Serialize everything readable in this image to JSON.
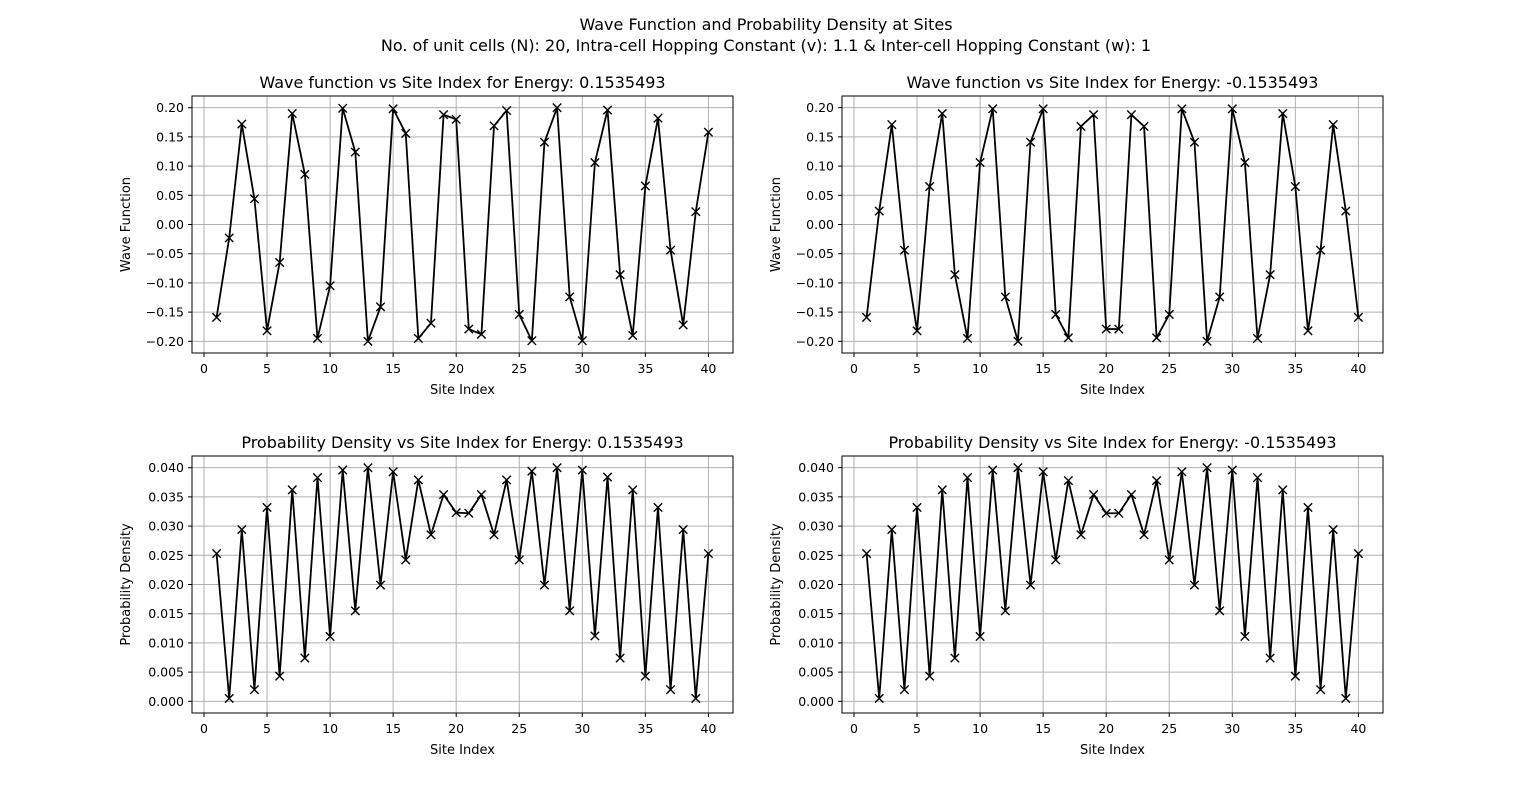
{
  "figure": {
    "suptitle_line1": "Wave Function and Probability Density at Sites",
    "suptitle_line2": "No. of unit cells (N): 20, Intra-cell Hopping Constant (v): 1.1 & Inter-cell Hopping Constant (w): 1"
  },
  "chart_data": [
    {
      "type": "line",
      "title": "Wave function vs Site Index for Energy: 0.1535493",
      "xlabel": "Site Index",
      "ylabel": "Wave Function",
      "xlim": [
        -0.95,
        41.95
      ],
      "ylim": [
        -0.22,
        0.22
      ],
      "xticks": [
        0,
        5,
        10,
        15,
        20,
        25,
        30,
        35,
        40
      ],
      "yticks": [
        -0.2,
        -0.15,
        -0.1,
        -0.05,
        0.0,
        0.05,
        0.1,
        0.15,
        0.2
      ],
      "ytick_labels": [
        "−0.20",
        "−0.15",
        "−0.10",
        "−0.05",
        "0.00",
        "0.05",
        "0.10",
        "0.15",
        "0.20"
      ],
      "grid": true,
      "marker": "x",
      "color": "#000000",
      "x": [
        1,
        2,
        3,
        4,
        5,
        6,
        7,
        8,
        9,
        10,
        11,
        12,
        13,
        14,
        15,
        16,
        17,
        18,
        19,
        20,
        21,
        22,
        23,
        24,
        25,
        26,
        27,
        28,
        29,
        30,
        31,
        32,
        33,
        34,
        35,
        36,
        37,
        38,
        39,
        40
      ],
      "y": [
        -0.159,
        -0.023,
        0.172,
        0.044,
        -0.182,
        -0.065,
        0.19,
        0.086,
        -0.195,
        -0.105,
        0.199,
        0.124,
        -0.2,
        -0.141,
        0.198,
        0.156,
        -0.195,
        -0.169,
        0.188,
        0.18,
        -0.179,
        -0.188,
        0.169,
        0.195,
        -0.154,
        -0.199,
        0.141,
        0.2,
        -0.124,
        -0.199,
        0.106,
        0.196,
        -0.086,
        -0.19,
        0.066,
        0.182,
        -0.044,
        -0.172,
        0.022,
        0.158
      ]
    },
    {
      "type": "line",
      "title": "Wave function vs Site Index for Energy: -0.1535493",
      "xlabel": "Site Index",
      "ylabel": "Wave Function",
      "xlim": [
        -0.95,
        41.95
      ],
      "ylim": [
        -0.22,
        0.22
      ],
      "xticks": [
        0,
        5,
        10,
        15,
        20,
        25,
        30,
        35,
        40
      ],
      "yticks": [
        -0.2,
        -0.15,
        -0.1,
        -0.05,
        0.0,
        0.05,
        0.1,
        0.15,
        0.2
      ],
      "ytick_labels": [
        "−0.20",
        "−0.15",
        "−0.10",
        "−0.05",
        "0.00",
        "0.05",
        "0.10",
        "0.15",
        "0.20"
      ],
      "grid": true,
      "marker": "x",
      "color": "#000000",
      "x": [
        1,
        2,
        3,
        4,
        5,
        6,
        7,
        8,
        9,
        10,
        11,
        12,
        13,
        14,
        15,
        16,
        17,
        18,
        19,
        20,
        21,
        22,
        23,
        24,
        25,
        26,
        27,
        28,
        29,
        30,
        31,
        32,
        33,
        34,
        35,
        36,
        37,
        38,
        39,
        40
      ],
      "y": [
        -0.159,
        0.023,
        0.171,
        -0.044,
        -0.182,
        0.065,
        0.19,
        -0.086,
        -0.195,
        0.106,
        0.198,
        -0.124,
        -0.2,
        0.141,
        0.198,
        -0.154,
        -0.194,
        0.168,
        0.188,
        -0.179,
        -0.179,
        0.188,
        0.168,
        -0.194,
        -0.154,
        0.198,
        0.141,
        -0.2,
        -0.124,
        0.198,
        0.106,
        -0.195,
        -0.086,
        0.19,
        0.065,
        -0.182,
        -0.044,
        0.171,
        0.023,
        -0.159
      ]
    },
    {
      "type": "line",
      "title": "Probability Density vs Site Index for Energy: 0.1535493",
      "xlabel": "Site Index",
      "ylabel": "Probability Density",
      "xlim": [
        -0.95,
        41.95
      ],
      "ylim": [
        -0.002,
        0.042
      ],
      "xticks": [
        0,
        5,
        10,
        15,
        20,
        25,
        30,
        35,
        40
      ],
      "yticks": [
        0.0,
        0.005,
        0.01,
        0.015,
        0.02,
        0.025,
        0.03,
        0.035,
        0.04
      ],
      "ytick_labels": [
        "0.000",
        "0.005",
        "0.010",
        "0.015",
        "0.020",
        "0.025",
        "0.030",
        "0.035",
        "0.040"
      ],
      "grid": true,
      "marker": "x",
      "color": "#000000",
      "x": [
        1,
        2,
        3,
        4,
        5,
        6,
        7,
        8,
        9,
        10,
        11,
        12,
        13,
        14,
        15,
        16,
        17,
        18,
        19,
        20,
        21,
        22,
        23,
        24,
        25,
        26,
        27,
        28,
        29,
        30,
        31,
        32,
        33,
        34,
        35,
        36,
        37,
        38,
        39,
        40
      ],
      "y": [
        0.0253,
        0.0005,
        0.0294,
        0.002,
        0.0332,
        0.0043,
        0.0362,
        0.0074,
        0.0383,
        0.0111,
        0.0396,
        0.0155,
        0.04,
        0.0199,
        0.0393,
        0.0242,
        0.0379,
        0.0285,
        0.0354,
        0.0323,
        0.0322,
        0.0354,
        0.0285,
        0.0379,
        0.0242,
        0.0394,
        0.0199,
        0.04,
        0.0155,
        0.0396,
        0.0112,
        0.0384,
        0.0074,
        0.0362,
        0.0043,
        0.0332,
        0.002,
        0.0294,
        0.0005,
        0.0253
      ]
    },
    {
      "type": "line",
      "title": "Probability Density vs Site Index for Energy: -0.1535493",
      "xlabel": "Site Index",
      "ylabel": "Probability Density",
      "xlim": [
        -0.95,
        41.95
      ],
      "ylim": [
        -0.002,
        0.042
      ],
      "xticks": [
        0,
        5,
        10,
        15,
        20,
        25,
        30,
        35,
        40
      ],
      "yticks": [
        0.0,
        0.005,
        0.01,
        0.015,
        0.02,
        0.025,
        0.03,
        0.035,
        0.04
      ],
      "ytick_labels": [
        "0.000",
        "0.005",
        "0.010",
        "0.015",
        "0.020",
        "0.025",
        "0.030",
        "0.035",
        "0.040"
      ],
      "grid": true,
      "marker": "x",
      "color": "#000000",
      "x": [
        1,
        2,
        3,
        4,
        5,
        6,
        7,
        8,
        9,
        10,
        11,
        12,
        13,
        14,
        15,
        16,
        17,
        18,
        19,
        20,
        21,
        22,
        23,
        24,
        25,
        26,
        27,
        28,
        29,
        30,
        31,
        32,
        33,
        34,
        35,
        36,
        37,
        38,
        39,
        40
      ],
      "y": [
        0.0253,
        0.0005,
        0.0294,
        0.002,
        0.0332,
        0.0043,
        0.0362,
        0.0074,
        0.0383,
        0.0111,
        0.0396,
        0.0155,
        0.04,
        0.0199,
        0.0393,
        0.0242,
        0.0378,
        0.0285,
        0.0354,
        0.0322,
        0.0322,
        0.0354,
        0.0285,
        0.0378,
        0.0242,
        0.0393,
        0.0199,
        0.04,
        0.0155,
        0.0396,
        0.0111,
        0.0383,
        0.0074,
        0.0362,
        0.0043,
        0.0332,
        0.002,
        0.0294,
        0.0005,
        0.0253
      ]
    }
  ]
}
